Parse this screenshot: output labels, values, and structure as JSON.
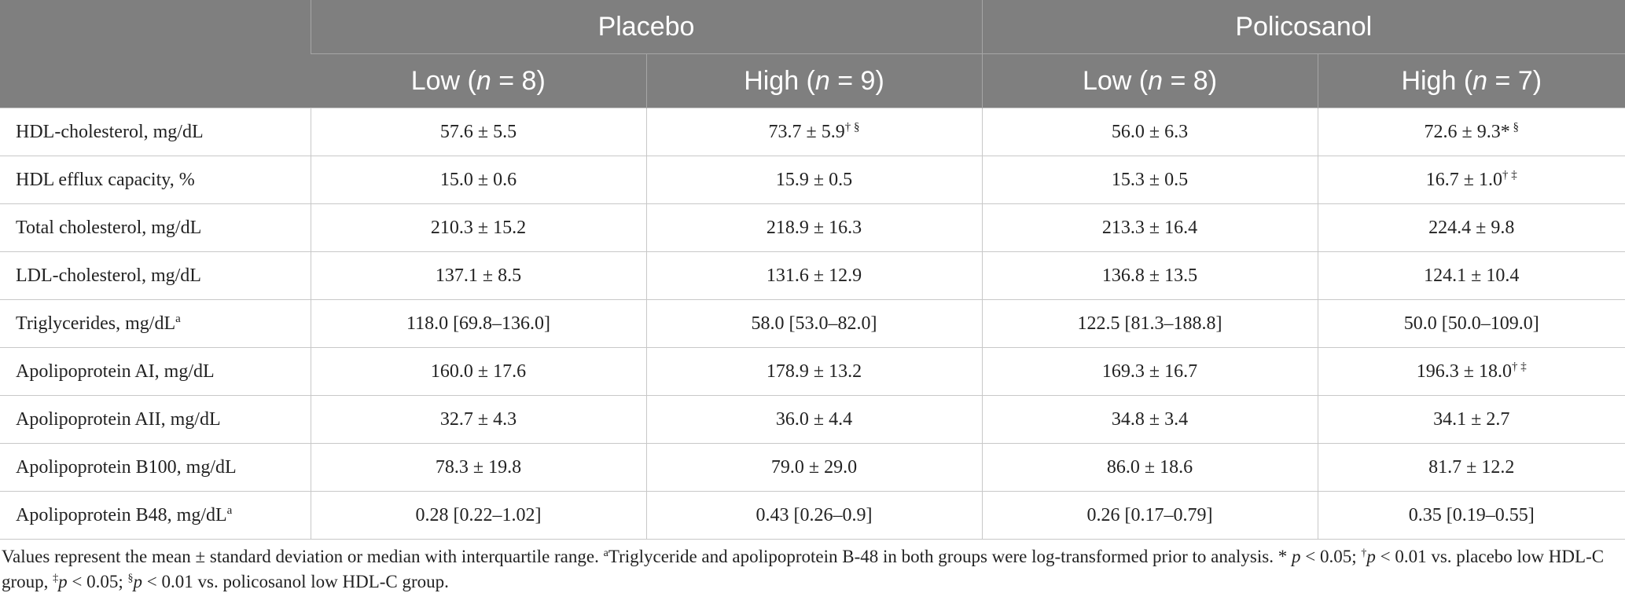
{
  "table": {
    "groups": [
      "Placebo",
      "Policosanol"
    ],
    "subheaders": [
      {
        "pre": "Low (",
        "italic": "n",
        "post": " = 8)"
      },
      {
        "pre": "High (",
        "italic": "n",
        "post": " = 9)"
      },
      {
        "pre": "Low (",
        "italic": "n",
        "post": " = 8)"
      },
      {
        "pre": "High (",
        "italic": "n",
        "post": " = 7)"
      }
    ],
    "rows": [
      {
        "label": "HDL-cholesterol, mg/dL",
        "cells": [
          {
            "text": "57.6 ± 5.5"
          },
          {
            "text": "73.7 ± 5.9",
            "sup": "† §"
          },
          {
            "text": "56.0 ± 6.3"
          },
          {
            "text": "72.6 ± 9.3*",
            "sup": " §"
          }
        ]
      },
      {
        "label": "HDL efflux capacity, %",
        "cells": [
          {
            "text": "15.0 ± 0.6"
          },
          {
            "text": "15.9 ± 0.5"
          },
          {
            "text": "15.3 ± 0.5"
          },
          {
            "text": "16.7 ± 1.0",
            "sup": "† ‡"
          }
        ]
      },
      {
        "label": "Total cholesterol, mg/dL",
        "cells": [
          {
            "text": "210.3 ± 15.2"
          },
          {
            "text": "218.9 ± 16.3"
          },
          {
            "text": "213.3 ± 16.4"
          },
          {
            "text": "224.4 ± 9.8"
          }
        ]
      },
      {
        "label": "LDL-cholesterol, mg/dL",
        "cells": [
          {
            "text": "137.1 ± 8.5"
          },
          {
            "text": "131.6 ± 12.9"
          },
          {
            "text": "136.8 ± 13.5"
          },
          {
            "text": "124.1 ± 10.4"
          }
        ]
      },
      {
        "label": "Triglycerides, mg/dL",
        "label_sup": "a",
        "cells": [
          {
            "text": "118.0 [69.8–136.0]"
          },
          {
            "text": "58.0 [53.0–82.0]"
          },
          {
            "text": "122.5 [81.3–188.8]"
          },
          {
            "text": "50.0 [50.0–109.0]"
          }
        ]
      },
      {
        "label": "Apolipoprotein AI, mg/dL",
        "cells": [
          {
            "text": "160.0 ± 17.6"
          },
          {
            "text": "178.9 ± 13.2"
          },
          {
            "text": "169.3 ± 16.7"
          },
          {
            "text": "196.3 ± 18.0",
            "sup": "† ‡"
          }
        ]
      },
      {
        "label": "Apolipoprotein AII, mg/dL",
        "cells": [
          {
            "text": "32.7 ± 4.3"
          },
          {
            "text": "36.0 ± 4.4"
          },
          {
            "text": "34.8 ± 3.4"
          },
          {
            "text": "34.1 ± 2.7"
          }
        ]
      },
      {
        "label": "Apolipoprotein B100, mg/dL",
        "cells": [
          {
            "text": "78.3 ± 19.8"
          },
          {
            "text": "79.0 ± 29.0"
          },
          {
            "text": "86.0 ± 18.6"
          },
          {
            "text": "81.7 ± 12.2"
          }
        ]
      },
      {
        "label": "Apolipoprotein B48, mg/dL",
        "label_sup": "a",
        "cells": [
          {
            "text": "0.28 [0.22–1.02]"
          },
          {
            "text": "0.43 [0.26–0.9]"
          },
          {
            "text": "0.26 [0.17–0.79]"
          },
          {
            "text": "0.35 [0.19–0.55]"
          }
        ]
      }
    ]
  },
  "footnote": [
    {
      "text": "Values represent the mean ± standard deviation or median with interquartile range. "
    },
    {
      "text": "a",
      "style": "sup"
    },
    {
      "text": "Triglyceride and apolipoprotein B-48 in both groups were log-transformed prior to analysis. * "
    },
    {
      "text": "p",
      "style": "i"
    },
    {
      "text": " < 0.05; "
    },
    {
      "text": "†",
      "style": "sup"
    },
    {
      "text": "p",
      "style": "i"
    },
    {
      "text": " < 0.01 vs. placebo low HDL-C group, "
    },
    {
      "text": "‡",
      "style": "sup"
    },
    {
      "text": "p",
      "style": "i"
    },
    {
      "text": " < 0.05; "
    },
    {
      "text": "§",
      "style": "sup"
    },
    {
      "text": "p",
      "style": "i"
    },
    {
      "text": " < 0.01 vs. policosanol low HDL-C group."
    }
  ]
}
